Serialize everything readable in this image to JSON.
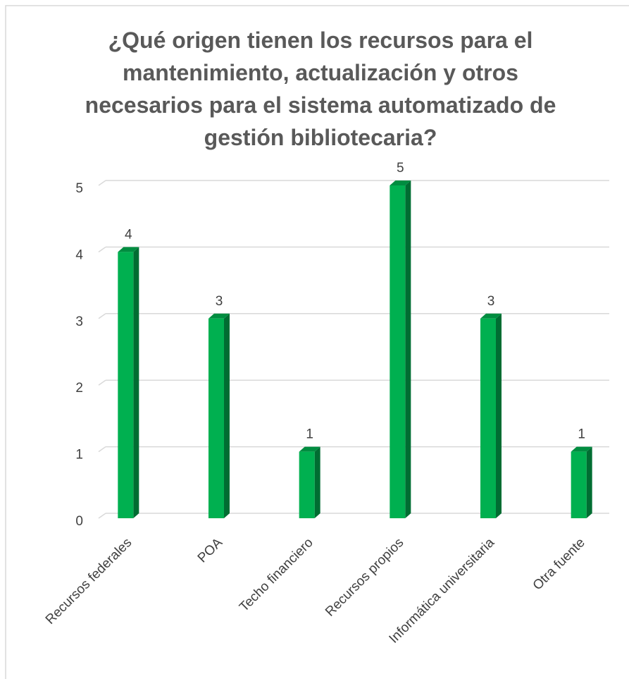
{
  "chart_data": {
    "type": "bar",
    "title": "¿Qué origen tienen los recursos para el mantenimiento, actualización y otros necesarios para el sistema automatizado de gestión bibliotecaria?",
    "categories": [
      "Recursos federales",
      "POA",
      "Techo financiero",
      "Recursos propios",
      "Informática universitaria",
      "Otra fuente"
    ],
    "values": [
      4,
      3,
      1,
      5,
      3,
      1
    ],
    "color": "#00b050",
    "ylim": [
      0,
      5
    ],
    "yticks": [
      0,
      1,
      2,
      3,
      4,
      5
    ],
    "grid": true
  }
}
